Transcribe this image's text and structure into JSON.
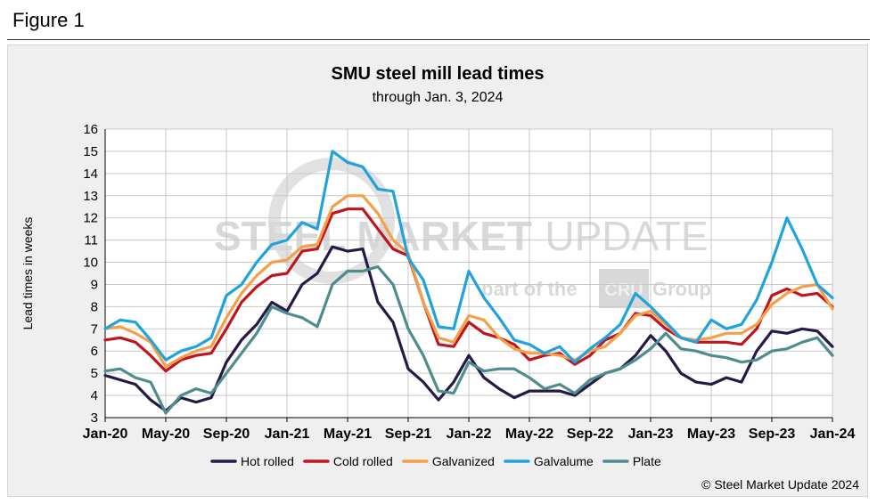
{
  "figure_label": "Figure 1",
  "copyright": "© Steel Market Update 2024",
  "watermark": {
    "main_bold": "STEEL MARKET",
    "main_thin": "UPDATE",
    "sub_left": "part of the",
    "sub_logo": "CRU",
    "sub_right": "Group"
  },
  "colors": {
    "Hot rolled": "#241a45",
    "Cold rolled": "#c0151c",
    "Galvanized": "#f4a04a",
    "Galvalume": "#20a3dc",
    "Plate": "#4e8c8e"
  },
  "chart_data": {
    "type": "line",
    "title": "SMU steel mill lead times",
    "subtitle": "through Jan. 3, 2024",
    "xlabel": "",
    "ylabel": "Lead times in weeks",
    "ylim": [
      3,
      16
    ],
    "yticks": [
      "3",
      "4",
      "5",
      "6",
      "7",
      "8",
      "9",
      "10",
      "11",
      "12",
      "13",
      "14",
      "15",
      "16"
    ],
    "xticks": [
      "Jan-20",
      "May-20",
      "Sep-20",
      "Jan-21",
      "May-21",
      "Sep-21",
      "Jan-22",
      "May-22",
      "Sep-22",
      "Jan-23",
      "May-23",
      "Sep-23",
      "Jan-24"
    ],
    "x_range": [
      0,
      48
    ],
    "legend": "bottom",
    "series": [
      {
        "name": "Hot rolled",
        "x": [
          0,
          1,
          2,
          3,
          4,
          5,
          6,
          7,
          8,
          9,
          10,
          11,
          12,
          13,
          14,
          15,
          16,
          17,
          18,
          19,
          20,
          21,
          22,
          23,
          24,
          25,
          26,
          27,
          28,
          29,
          30,
          31,
          32,
          33,
          34,
          35,
          36,
          37,
          38,
          39,
          40,
          41,
          42,
          43,
          44,
          45,
          46,
          47,
          48
        ],
        "values": [
          4.9,
          4.7,
          4.5,
          3.8,
          3.3,
          3.9,
          3.7,
          3.9,
          5.5,
          6.5,
          7.2,
          8.2,
          7.8,
          9.0,
          9.5,
          10.7,
          10.5,
          10.6,
          8.2,
          7.3,
          5.2,
          4.6,
          3.8,
          4.6,
          5.8,
          4.8,
          4.3,
          3.9,
          4.2,
          4.2,
          4.2,
          4.0,
          4.5,
          5.0,
          5.2,
          5.8,
          6.7,
          6.0,
          5.0,
          4.6,
          4.5,
          4.8,
          4.6,
          6.0,
          6.9,
          6.8,
          7.0,
          6.9,
          6.2
        ]
      },
      {
        "name": "Cold rolled",
        "x": [
          0,
          1,
          2,
          3,
          4,
          5,
          6,
          7,
          8,
          9,
          10,
          11,
          12,
          13,
          14,
          15,
          16,
          17,
          18,
          19,
          20,
          21,
          22,
          23,
          24,
          25,
          26,
          27,
          28,
          29,
          30,
          31,
          32,
          33,
          34,
          35,
          36,
          37,
          38,
          39,
          40,
          41,
          42,
          43,
          44,
          45,
          46,
          47,
          48
        ],
        "values": [
          6.5,
          6.6,
          6.4,
          5.8,
          5.1,
          5.6,
          5.8,
          5.9,
          7.0,
          8.2,
          8.9,
          9.4,
          9.5,
          10.5,
          10.6,
          12.2,
          12.4,
          12.4,
          11.5,
          10.6,
          10.3,
          8.2,
          6.3,
          6.2,
          7.3,
          6.8,
          6.6,
          6.3,
          5.6,
          5.8,
          5.9,
          5.4,
          5.8,
          6.5,
          6.8,
          7.7,
          7.6,
          7.0,
          6.6,
          6.4,
          6.4,
          6.4,
          6.3,
          7.0,
          8.5,
          8.8,
          8.5,
          8.6,
          8.0
        ]
      },
      {
        "name": "Galvanized",
        "x": [
          0,
          1,
          2,
          3,
          4,
          5,
          6,
          7,
          8,
          9,
          10,
          11,
          12,
          13,
          14,
          15,
          16,
          17,
          18,
          19,
          20,
          21,
          22,
          23,
          24,
          25,
          26,
          27,
          28,
          29,
          30,
          31,
          32,
          33,
          34,
          35,
          36,
          37,
          38,
          39,
          40,
          41,
          42,
          43,
          44,
          45,
          46,
          47,
          48
        ],
        "values": [
          7.0,
          7.1,
          6.8,
          6.4,
          5.3,
          5.7,
          6.0,
          6.2,
          7.5,
          8.6,
          9.4,
          10.0,
          10.1,
          10.7,
          10.8,
          12.5,
          13.0,
          13.0,
          12.2,
          11.0,
          10.4,
          8.2,
          6.6,
          6.4,
          7.6,
          7.4,
          6.6,
          6.1,
          5.9,
          5.9,
          5.8,
          5.6,
          6.0,
          6.2,
          6.8,
          7.6,
          7.8,
          7.2,
          6.6,
          6.5,
          6.6,
          6.8,
          6.8,
          7.2,
          8.1,
          8.6,
          8.9,
          9.0,
          7.9
        ]
      },
      {
        "name": "Galvalume",
        "x": [
          0,
          1,
          2,
          3,
          4,
          5,
          6,
          7,
          8,
          9,
          10,
          11,
          12,
          13,
          14,
          15,
          16,
          17,
          18,
          19,
          20,
          21,
          22,
          23,
          24,
          25,
          26,
          27,
          28,
          29,
          30,
          31,
          32,
          33,
          34,
          35,
          36,
          37,
          38,
          39,
          40,
          41,
          42,
          43,
          44,
          45,
          46,
          47,
          48
        ],
        "values": [
          7.0,
          7.4,
          7.3,
          6.5,
          5.6,
          6.0,
          6.2,
          6.6,
          8.5,
          9.0,
          10.0,
          10.8,
          11.0,
          11.8,
          11.5,
          15.0,
          14.5,
          14.3,
          13.3,
          13.2,
          10.2,
          9.2,
          7.1,
          7.0,
          9.6,
          8.4,
          7.5,
          6.5,
          6.3,
          5.9,
          6.2,
          5.5,
          6.1,
          6.6,
          7.2,
          8.6,
          8.0,
          7.3,
          6.6,
          6.4,
          7.4,
          7.0,
          7.2,
          8.3,
          10.0,
          12.0,
          10.6,
          9.0,
          8.4
        ]
      },
      {
        "name": "Plate",
        "x": [
          0,
          1,
          2,
          3,
          4,
          5,
          6,
          7,
          8,
          9,
          10,
          11,
          12,
          13,
          14,
          15,
          16,
          17,
          18,
          19,
          20,
          21,
          22,
          23,
          24,
          25,
          26,
          27,
          28,
          29,
          30,
          31,
          32,
          33,
          34,
          35,
          36,
          37,
          38,
          39,
          40,
          41,
          42,
          43,
          44,
          45,
          46,
          47,
          48
        ],
        "values": [
          5.1,
          5.2,
          4.8,
          4.6,
          3.2,
          4.0,
          4.3,
          4.1,
          5.0,
          5.9,
          6.8,
          8.0,
          7.7,
          7.5,
          7.1,
          9.0,
          9.6,
          9.6,
          9.8,
          9.0,
          7.0,
          5.8,
          4.2,
          4.1,
          5.5,
          5.1,
          5.2,
          5.2,
          4.8,
          4.3,
          4.5,
          4.1,
          4.7,
          5.0,
          5.2,
          5.6,
          6.1,
          6.8,
          6.1,
          6.0,
          5.8,
          5.7,
          5.5,
          5.6,
          6.0,
          6.1,
          6.4,
          6.6,
          5.8
        ]
      }
    ]
  }
}
